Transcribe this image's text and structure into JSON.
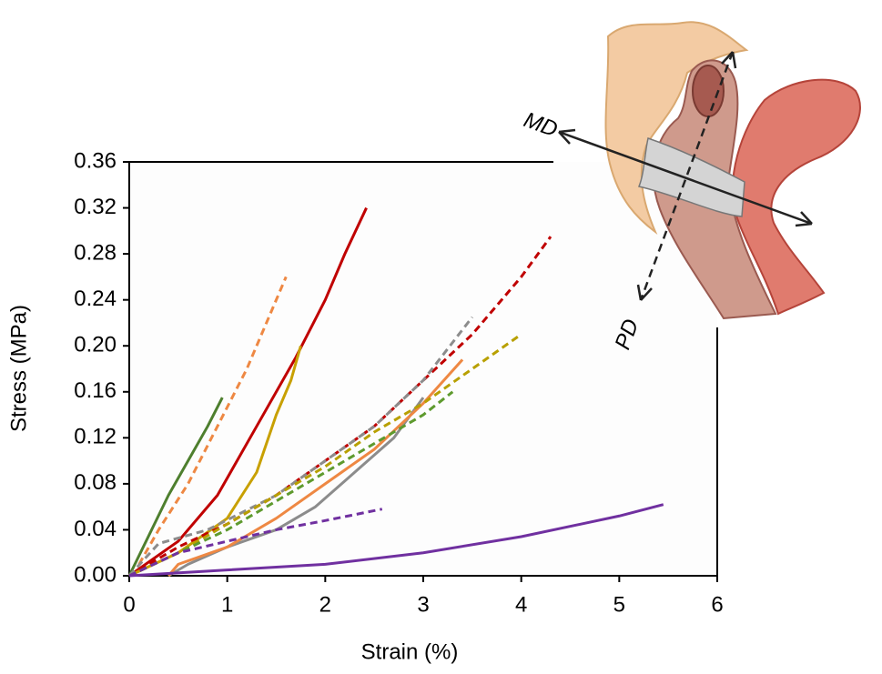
{
  "chart_data": {
    "type": "line",
    "xlabel": "Strain (%)",
    "ylabel": "Stress (MPa)",
    "xlim": [
      0,
      6
    ],
    "ylim": [
      0,
      0.36
    ],
    "xticks": [
      0,
      1,
      2,
      3,
      4,
      5,
      6
    ],
    "yticks": [
      {
        "value": 0,
        "label": "0.00"
      },
      {
        "value": 0.04,
        "label": "0.04"
      },
      {
        "value": 0.08,
        "label": "0.08"
      },
      {
        "value": 0.12,
        "label": "0.12"
      },
      {
        "value": 0.16,
        "label": "0.16"
      },
      {
        "value": 0.2,
        "label": "0.20"
      },
      {
        "value": 0.24,
        "label": "0.24"
      },
      {
        "value": 0.28,
        "label": "0.28"
      },
      {
        "value": 0.32,
        "label": "0.32"
      },
      {
        "value": 0.36,
        "label": "0.36"
      }
    ],
    "annotations": [
      "MD",
      "PD"
    ],
    "series": [
      {
        "color": "#4e7f2e",
        "dashed": false,
        "x": [
          0,
          0.2,
          0.4,
          0.6,
          0.8,
          0.95
        ],
        "values": [
          0,
          0.035,
          0.07,
          0.1,
          0.13,
          0.155
        ]
      },
      {
        "color": "#ee8843",
        "dashed": true,
        "x": [
          0.1,
          0.3,
          0.6,
          0.9,
          1.2,
          1.4,
          1.6
        ],
        "values": [
          0.01,
          0.04,
          0.08,
          0.13,
          0.18,
          0.22,
          0.26
        ]
      },
      {
        "color": "#c00000",
        "dashed": false,
        "x": [
          0,
          0.5,
          0.9,
          1.3,
          1.7,
          2.0,
          2.2,
          2.42
        ],
        "values": [
          0,
          0.03,
          0.07,
          0.13,
          0.19,
          0.24,
          0.28,
          0.32
        ]
      },
      {
        "color": "#c8a000",
        "dashed": false,
        "x": [
          0,
          0.5,
          1.0,
          1.3,
          1.5,
          1.65,
          1.75
        ],
        "values": [
          0,
          0.02,
          0.05,
          0.09,
          0.14,
          0.17,
          0.2
        ]
      },
      {
        "color": "#c00000",
        "dashed": true,
        "x": [
          0,
          0.5,
          1,
          1.5,
          2,
          2.5,
          3,
          3.5,
          4,
          4.3
        ],
        "values": [
          0,
          0.025,
          0.045,
          0.07,
          0.1,
          0.13,
          0.17,
          0.21,
          0.26,
          0.295
        ]
      },
      {
        "color": "#8c8c8c",
        "dashed": true,
        "x": [
          0,
          0.3,
          0.8,
          1.5,
          2,
          2.5,
          3,
          3.5
        ],
        "values": [
          0,
          0.028,
          0.04,
          0.07,
          0.1,
          0.13,
          0.17,
          0.225
        ]
      },
      {
        "color": "#8c8c8c",
        "dashed": false,
        "x": [
          0.4,
          0.6,
          1,
          1.5,
          1.9,
          2.3,
          2.7,
          3
        ],
        "values": [
          0,
          0.01,
          0.025,
          0.04,
          0.06,
          0.09,
          0.12,
          0.155
        ]
      },
      {
        "color": "#ee8843",
        "dashed": false,
        "x": [
          0.4,
          0.5,
          1,
          1.5,
          2,
          2.5,
          3,
          3.4
        ],
        "values": [
          0,
          0.01,
          0.025,
          0.05,
          0.08,
          0.11,
          0.15,
          0.188
        ]
      },
      {
        "color": "#b8a000",
        "dashed": true,
        "x": [
          0,
          0.5,
          1,
          1.5,
          2,
          2.5,
          3,
          3.5,
          4
        ],
        "values": [
          0,
          0.02,
          0.045,
          0.07,
          0.095,
          0.125,
          0.15,
          0.18,
          0.21
        ]
      },
      {
        "color": "#5e9a2e",
        "dashed": true,
        "x": [
          0,
          0.5,
          1,
          1.5,
          2,
          2.5,
          3,
          3.3
        ],
        "values": [
          0,
          0.02,
          0.04,
          0.065,
          0.09,
          0.115,
          0.14,
          0.16
        ]
      },
      {
        "color": "#7030a0",
        "dashed": true,
        "x": [
          0,
          0.5,
          1,
          1.5,
          2,
          2.58
        ],
        "values": [
          0,
          0.02,
          0.03,
          0.04,
          0.048,
          0.058
        ]
      },
      {
        "color": "#7030a0",
        "dashed": false,
        "x": [
          0,
          1,
          2,
          3,
          4,
          5,
          5.45
        ],
        "values": [
          0,
          0.005,
          0.01,
          0.02,
          0.034,
          0.052,
          0.062
        ]
      }
    ]
  }
}
